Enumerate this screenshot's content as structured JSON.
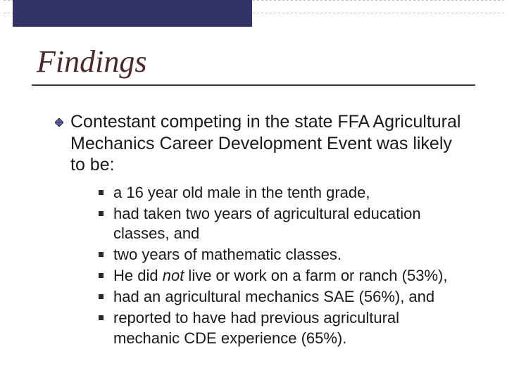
{
  "slide": {
    "title": "Findings",
    "accent_bar_color": "#333366",
    "title_color": "#4a2a2a",
    "main_item": {
      "text": "Contestant competing in the state FFA Agricultural Mechanics Career Development Event was likely to be:",
      "bullet_fill": "#6666cc",
      "bullet_stroke": "#2a2a2a"
    },
    "sub_items": [
      {
        "text": " a 16 year old male in the tenth grade,"
      },
      {
        "text": "had taken two years of agricultural education classes, and"
      },
      {
        "text": " two years of mathematic classes."
      },
      {
        "html": "He did <em>not</em> live or work on a farm or ranch (53%),"
      },
      {
        "text": "had an agricultural mechanics SAE (56%), and"
      },
      {
        "text": "reported to have had previous agricultural mechanic CDE experience (65%)."
      }
    ]
  }
}
